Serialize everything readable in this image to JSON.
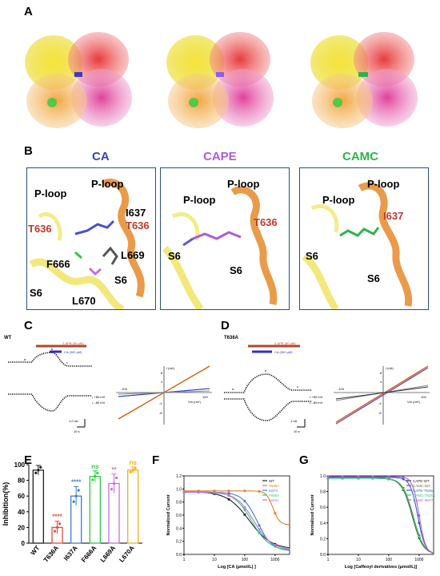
{
  "panel_letters": {
    "A": "A",
    "B": "B",
    "C": "C",
    "D": "D",
    "E": "E",
    "F": "F",
    "G": "G"
  },
  "panel_b": {
    "boxes": [
      {
        "title": "CA",
        "title_color": "#3b3fb5",
        "labels": {
          "ploop1": "P-loop",
          "ploop2": "P-loop",
          "i637": "I637",
          "t636a": "T636",
          "t636b": "T636",
          "f666": "F666",
          "l669": "L669",
          "s6a": "S6",
          "s6b": "S6",
          "l670": "L670"
        }
      },
      {
        "title": "CAPE",
        "title_color": "#b05ad6",
        "labels": {
          "ploop1": "P-loop",
          "ploop2": "P-loop",
          "t636": "T636",
          "s6a": "S6",
          "s6b": "S6"
        }
      },
      {
        "title": "CAMC",
        "title_color": "#2db34a",
        "labels": {
          "ploop1": "P-loop",
          "ploop2": "P-loop",
          "i637": "I637",
          "s6a": "S6",
          "s6b": "S6"
        }
      }
    ]
  },
  "panel_c": {
    "tag": "WT",
    "bar_2apb": "2-APB (50 μM)",
    "bar_ca": "CA (300 μM)",
    "legend_pos": "• +80 mV",
    "legend_neg": "• –80 mV",
    "scale_current": "1.0 nA",
    "scale_time": "10 s",
    "points": [
      "a",
      "b",
      "c"
    ],
    "iv": {
      "ylabel": "I (nA)",
      "xlabel": "Vm (mV)",
      "xmin": "-100",
      "xmax": "100",
      "yticks": [
        "8",
        "4",
        "-4",
        "-8"
      ],
      "curve_labels": [
        "a",
        "b",
        "c"
      ]
    }
  },
  "panel_d": {
    "tag": "T636A",
    "bar_2apb": "2-APB (50 μM)",
    "bar_ca": "CA (300 μM)",
    "legend_pos": "• +80 mV",
    "legend_neg": "• –80 mV",
    "scale_current": "1 nA",
    "scale_time": "10 s",
    "points": [
      "a",
      "b",
      "c"
    ],
    "iv": {
      "ylabel": "I (nA)",
      "xlabel": "Vm (mV)",
      "xmin": "-100",
      "xmax": "100",
      "yticks": [
        "8",
        "4",
        "-4",
        "-8"
      ],
      "curve_labels": [
        "a",
        "b",
        "c"
      ]
    }
  },
  "chart_data": [
    {
      "type": "bar",
      "panel": "E",
      "categories": [
        "WT",
        "T636A",
        "I637A",
        "F666A",
        "L669A",
        "L670A"
      ],
      "values": [
        93,
        20,
        60,
        85,
        76,
        93
      ],
      "errors": [
        6,
        8,
        12,
        7,
        12,
        4
      ],
      "significance": [
        "",
        "****",
        "****",
        "ns",
        "**",
        "ns"
      ],
      "colors": [
        "#222222",
        "#e74c3c",
        "#3a7fd5",
        "#2ecc40",
        "#c86edb",
        "#f2b21b"
      ],
      "ylabel": "Inhibition(%)",
      "ylim": [
        0,
        100
      ],
      "yticks": [
        0,
        20,
        40,
        60,
        80,
        100
      ]
    },
    {
      "type": "line",
      "panel": "F",
      "xlabel": "Log [CA (μmol/L) ]",
      "ylabel": "Normalized Current",
      "xscale": "log",
      "xlim": [
        1,
        3000
      ],
      "xticks": [
        "1",
        "10",
        "100",
        "1000"
      ],
      "ylim": [
        0,
        1.2
      ],
      "yticks": [
        "0.0",
        "0.2",
        "0.4",
        "0.6",
        "0.8",
        "1.0",
        "1.2"
      ],
      "legend": "top-right",
      "series": [
        {
          "name": "WT",
          "color": "#222222",
          "top": 0.96,
          "bottom": 0.08,
          "ic50": 140,
          "hill": 1.2
        },
        {
          "name": "T636A",
          "color": "#e67e22",
          "top": 0.97,
          "bottom": 0.45,
          "ic50": 850,
          "hill": 4
        },
        {
          "name": "I637A",
          "color": "#3a7fd5",
          "top": 0.95,
          "bottom": 0.05,
          "ic50": 260,
          "hill": 1.8
        },
        {
          "name": "F666A",
          "color": "#2ecc71",
          "top": 0.96,
          "bottom": 0.06,
          "ic50": 170,
          "hill": 1.5
        },
        {
          "name": "L669A",
          "color": "#c86edb",
          "top": 0.95,
          "bottom": 0.07,
          "ic50": 200,
          "hill": 1.5
        }
      ]
    },
    {
      "type": "line",
      "panel": "G",
      "xlabel": "Log [Caffeoyl derivatives (μmol/L)]",
      "ylabel": "Normalized Current",
      "xscale": "log",
      "xlim": [
        1,
        3000
      ],
      "xticks": [
        "1",
        "10",
        "100",
        "1000"
      ],
      "ylim": [
        0,
        1.0
      ],
      "yticks": [
        "0.0",
        "0.2",
        "0.4",
        "0.6",
        "0.8",
        "1.0"
      ],
      "legend": "top-right",
      "series": [
        {
          "name": "CAPE-WT",
          "color": "#222222",
          "top": 0.97,
          "bottom": 0.0,
          "ic50": 600,
          "hill": 2.5
        },
        {
          "name": "CAMC-WT",
          "color": "#8e5a2a",
          "top": 0.97,
          "bottom": 0.0,
          "ic50": 640,
          "hill": 2.5
        },
        {
          "name": "CAPE-T636A",
          "color": "#2e5fd8",
          "top": 0.98,
          "bottom": 0.0,
          "ic50": 900,
          "hill": 3.5
        },
        {
          "name": "CAMC-T636A",
          "color": "#2ecc71",
          "top": 0.97,
          "bottom": 0.0,
          "ic50": 620,
          "hill": 2.5
        },
        {
          "name": "CAMC-I637A",
          "color": "#b05ad6",
          "top": 0.99,
          "bottom": 0.0,
          "ic50": 1000,
          "hill": 4
        }
      ]
    }
  ]
}
